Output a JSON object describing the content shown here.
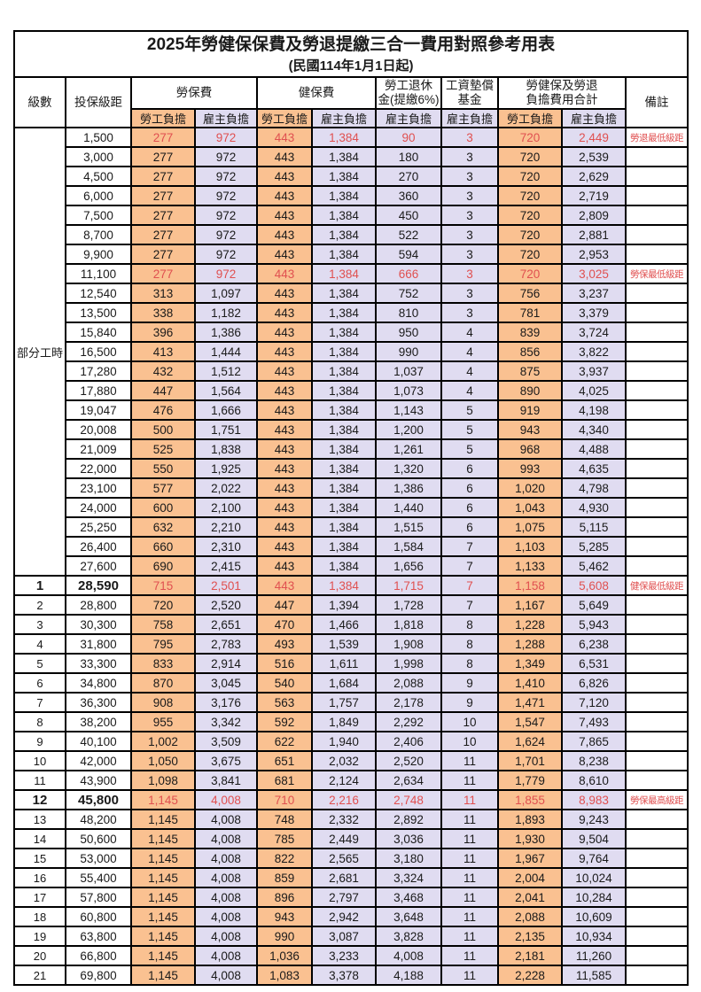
{
  "title": "2025年勞健保保費及勞退提繳三合一費用對照參考用表",
  "subtitle": "(民國114年1月1日起)",
  "colors": {
    "employee_bg": "#FAC191",
    "employer_bg": "#E0DCF1",
    "highlight_red": "#E05050",
    "grid": "#000000"
  },
  "table": {
    "headers": {
      "level": "級數",
      "bracket": "投保級距",
      "labor_fee": "勞保費",
      "health_fee": "健保費",
      "pension_line1": "勞工退休",
      "pension_line2": "金(提繳6%)",
      "wage_fund_line1": "工資墊償",
      "wage_fund_line2": "基金",
      "total_line1": "勞健保及勞退",
      "total_line2": "負擔費用合計",
      "note": "備註",
      "employee": "勞工負擔",
      "employer": "雇主負擔"
    },
    "part_time_label": "部分工時",
    "rows": [
      {
        "level": null,
        "bracket": "1,500",
        "values": [
          "277",
          "972",
          "443",
          "1,384",
          "90",
          "3",
          "720",
          "2,449"
        ],
        "note": "勞退最低級距",
        "red": true,
        "bold": false
      },
      {
        "level": null,
        "bracket": "3,000",
        "values": [
          "277",
          "972",
          "443",
          "1,384",
          "180",
          "3",
          "720",
          "2,539"
        ],
        "note": "",
        "red": false,
        "bold": false
      },
      {
        "level": null,
        "bracket": "4,500",
        "values": [
          "277",
          "972",
          "443",
          "1,384",
          "270",
          "3",
          "720",
          "2,629"
        ],
        "note": "",
        "red": false,
        "bold": false
      },
      {
        "level": null,
        "bracket": "6,000",
        "values": [
          "277",
          "972",
          "443",
          "1,384",
          "360",
          "3",
          "720",
          "2,719"
        ],
        "note": "",
        "red": false,
        "bold": false
      },
      {
        "level": null,
        "bracket": "7,500",
        "values": [
          "277",
          "972",
          "443",
          "1,384",
          "450",
          "3",
          "720",
          "2,809"
        ],
        "note": "",
        "red": false,
        "bold": false
      },
      {
        "level": null,
        "bracket": "8,700",
        "values": [
          "277",
          "972",
          "443",
          "1,384",
          "522",
          "3",
          "720",
          "2,881"
        ],
        "note": "",
        "red": false,
        "bold": false
      },
      {
        "level": null,
        "bracket": "9,900",
        "values": [
          "277",
          "972",
          "443",
          "1,384",
          "594",
          "3",
          "720",
          "2,953"
        ],
        "note": "",
        "red": false,
        "bold": false
      },
      {
        "level": null,
        "bracket": "11,100",
        "values": [
          "277",
          "972",
          "443",
          "1,384",
          "666",
          "3",
          "720",
          "3,025"
        ],
        "note": "勞保最低級距",
        "red": true,
        "bold": false
      },
      {
        "level": null,
        "bracket": "12,540",
        "values": [
          "313",
          "1,097",
          "443",
          "1,384",
          "752",
          "3",
          "756",
          "3,237"
        ],
        "note": "",
        "red": false,
        "bold": false
      },
      {
        "level": null,
        "bracket": "13,500",
        "values": [
          "338",
          "1,182",
          "443",
          "1,384",
          "810",
          "3",
          "781",
          "3,379"
        ],
        "note": "",
        "red": false,
        "bold": false
      },
      {
        "level": null,
        "bracket": "15,840",
        "values": [
          "396",
          "1,386",
          "443",
          "1,384",
          "950",
          "4",
          "839",
          "3,724"
        ],
        "note": "",
        "red": false,
        "bold": false
      },
      {
        "level": null,
        "bracket": "16,500",
        "values": [
          "413",
          "1,444",
          "443",
          "1,384",
          "990",
          "4",
          "856",
          "3,822"
        ],
        "note": "",
        "red": false,
        "bold": false
      },
      {
        "level": null,
        "bracket": "17,280",
        "values": [
          "432",
          "1,512",
          "443",
          "1,384",
          "1,037",
          "4",
          "875",
          "3,937"
        ],
        "note": "",
        "red": false,
        "bold": false
      },
      {
        "level": null,
        "bracket": "17,880",
        "values": [
          "447",
          "1,564",
          "443",
          "1,384",
          "1,073",
          "4",
          "890",
          "4,025"
        ],
        "note": "",
        "red": false,
        "bold": false
      },
      {
        "level": null,
        "bracket": "19,047",
        "values": [
          "476",
          "1,666",
          "443",
          "1,384",
          "1,143",
          "5",
          "919",
          "4,198"
        ],
        "note": "",
        "red": false,
        "bold": false
      },
      {
        "level": null,
        "bracket": "20,008",
        "values": [
          "500",
          "1,751",
          "443",
          "1,384",
          "1,200",
          "5",
          "943",
          "4,340"
        ],
        "note": "",
        "red": false,
        "bold": false
      },
      {
        "level": null,
        "bracket": "21,009",
        "values": [
          "525",
          "1,838",
          "443",
          "1,384",
          "1,261",
          "5",
          "968",
          "4,488"
        ],
        "note": "",
        "red": false,
        "bold": false
      },
      {
        "level": null,
        "bracket": "22,000",
        "values": [
          "550",
          "1,925",
          "443",
          "1,384",
          "1,320",
          "6",
          "993",
          "4,635"
        ],
        "note": "",
        "red": false,
        "bold": false
      },
      {
        "level": null,
        "bracket": "23,100",
        "values": [
          "577",
          "2,022",
          "443",
          "1,384",
          "1,386",
          "6",
          "1,020",
          "4,798"
        ],
        "note": "",
        "red": false,
        "bold": false
      },
      {
        "level": null,
        "bracket": "24,000",
        "values": [
          "600",
          "2,100",
          "443",
          "1,384",
          "1,440",
          "6",
          "1,043",
          "4,930"
        ],
        "note": "",
        "red": false,
        "bold": false
      },
      {
        "level": null,
        "bracket": "25,250",
        "values": [
          "632",
          "2,210",
          "443",
          "1,384",
          "1,515",
          "6",
          "1,075",
          "5,115"
        ],
        "note": "",
        "red": false,
        "bold": false
      },
      {
        "level": null,
        "bracket": "26,400",
        "values": [
          "660",
          "2,310",
          "443",
          "1,384",
          "1,584",
          "7",
          "1,103",
          "5,285"
        ],
        "note": "",
        "red": false,
        "bold": false
      },
      {
        "level": null,
        "bracket": "27,600",
        "values": [
          "690",
          "2,415",
          "443",
          "1,384",
          "1,656",
          "7",
          "1,133",
          "5,462"
        ],
        "note": "",
        "red": false,
        "bold": false
      },
      {
        "level": "1",
        "bracket": "28,590",
        "values": [
          "715",
          "2,501",
          "443",
          "1,384",
          "1,715",
          "7",
          "1,158",
          "5,608"
        ],
        "note": "健保最低級距",
        "red": true,
        "bold": true
      },
      {
        "level": "2",
        "bracket": "28,800",
        "values": [
          "720",
          "2,520",
          "447",
          "1,394",
          "1,728",
          "7",
          "1,167",
          "5,649"
        ],
        "note": "",
        "red": false,
        "bold": false
      },
      {
        "level": "3",
        "bracket": "30,300",
        "values": [
          "758",
          "2,651",
          "470",
          "1,466",
          "1,818",
          "8",
          "1,228",
          "5,943"
        ],
        "note": "",
        "red": false,
        "bold": false
      },
      {
        "level": "4",
        "bracket": "31,800",
        "values": [
          "795",
          "2,783",
          "493",
          "1,539",
          "1,908",
          "8",
          "1,288",
          "6,238"
        ],
        "note": "",
        "red": false,
        "bold": false
      },
      {
        "level": "5",
        "bracket": "33,300",
        "values": [
          "833",
          "2,914",
          "516",
          "1,611",
          "1,998",
          "8",
          "1,349",
          "6,531"
        ],
        "note": "",
        "red": false,
        "bold": false
      },
      {
        "level": "6",
        "bracket": "34,800",
        "values": [
          "870",
          "3,045",
          "540",
          "1,684",
          "2,088",
          "9",
          "1,410",
          "6,826"
        ],
        "note": "",
        "red": false,
        "bold": false
      },
      {
        "level": "7",
        "bracket": "36,300",
        "values": [
          "908",
          "3,176",
          "563",
          "1,757",
          "2,178",
          "9",
          "1,471",
          "7,120"
        ],
        "note": "",
        "red": false,
        "bold": false
      },
      {
        "level": "8",
        "bracket": "38,200",
        "values": [
          "955",
          "3,342",
          "592",
          "1,849",
          "2,292",
          "10",
          "1,547",
          "7,493"
        ],
        "note": "",
        "red": false,
        "bold": false
      },
      {
        "level": "9",
        "bracket": "40,100",
        "values": [
          "1,002",
          "3,509",
          "622",
          "1,940",
          "2,406",
          "10",
          "1,624",
          "7,865"
        ],
        "note": "",
        "red": false,
        "bold": false
      },
      {
        "level": "10",
        "bracket": "42,000",
        "values": [
          "1,050",
          "3,675",
          "651",
          "2,032",
          "2,520",
          "11",
          "1,701",
          "8,238"
        ],
        "note": "",
        "red": false,
        "bold": false
      },
      {
        "level": "11",
        "bracket": "43,900",
        "values": [
          "1,098",
          "3,841",
          "681",
          "2,124",
          "2,634",
          "11",
          "1,779",
          "8,610"
        ],
        "note": "",
        "red": false,
        "bold": false
      },
      {
        "level": "12",
        "bracket": "45,800",
        "values": [
          "1,145",
          "4,008",
          "710",
          "2,216",
          "2,748",
          "11",
          "1,855",
          "8,983"
        ],
        "note": "勞保最高級距",
        "red": true,
        "bold": true
      },
      {
        "level": "13",
        "bracket": "48,200",
        "values": [
          "1,145",
          "4,008",
          "748",
          "2,332",
          "2,892",
          "11",
          "1,893",
          "9,243"
        ],
        "note": "",
        "red": false,
        "bold": false
      },
      {
        "level": "14",
        "bracket": "50,600",
        "values": [
          "1,145",
          "4,008",
          "785",
          "2,449",
          "3,036",
          "11",
          "1,930",
          "9,504"
        ],
        "note": "",
        "red": false,
        "bold": false
      },
      {
        "level": "15",
        "bracket": "53,000",
        "values": [
          "1,145",
          "4,008",
          "822",
          "2,565",
          "3,180",
          "11",
          "1,967",
          "9,764"
        ],
        "note": "",
        "red": false,
        "bold": false
      },
      {
        "level": "16",
        "bracket": "55,400",
        "values": [
          "1,145",
          "4,008",
          "859",
          "2,681",
          "3,324",
          "11",
          "2,004",
          "10,024"
        ],
        "note": "",
        "red": false,
        "bold": false
      },
      {
        "level": "17",
        "bracket": "57,800",
        "values": [
          "1,145",
          "4,008",
          "896",
          "2,797",
          "3,468",
          "11",
          "2,041",
          "10,284"
        ],
        "note": "",
        "red": false,
        "bold": false
      },
      {
        "level": "18",
        "bracket": "60,800",
        "values": [
          "1,145",
          "4,008",
          "943",
          "2,942",
          "3,648",
          "11",
          "2,088",
          "10,609"
        ],
        "note": "",
        "red": false,
        "bold": false
      },
      {
        "level": "19",
        "bracket": "63,800",
        "values": [
          "1,145",
          "4,008",
          "990",
          "3,087",
          "3,828",
          "11",
          "2,135",
          "10,934"
        ],
        "note": "",
        "red": false,
        "bold": false
      },
      {
        "level": "20",
        "bracket": "66,800",
        "values": [
          "1,145",
          "4,008",
          "1,036",
          "3,233",
          "4,008",
          "11",
          "2,181",
          "11,260"
        ],
        "note": "",
        "red": false,
        "bold": false
      },
      {
        "level": "21",
        "bracket": "69,800",
        "values": [
          "1,145",
          "4,008",
          "1,083",
          "3,378",
          "4,188",
          "11",
          "2,228",
          "11,585"
        ],
        "note": "",
        "red": false,
        "bold": false
      }
    ]
  }
}
